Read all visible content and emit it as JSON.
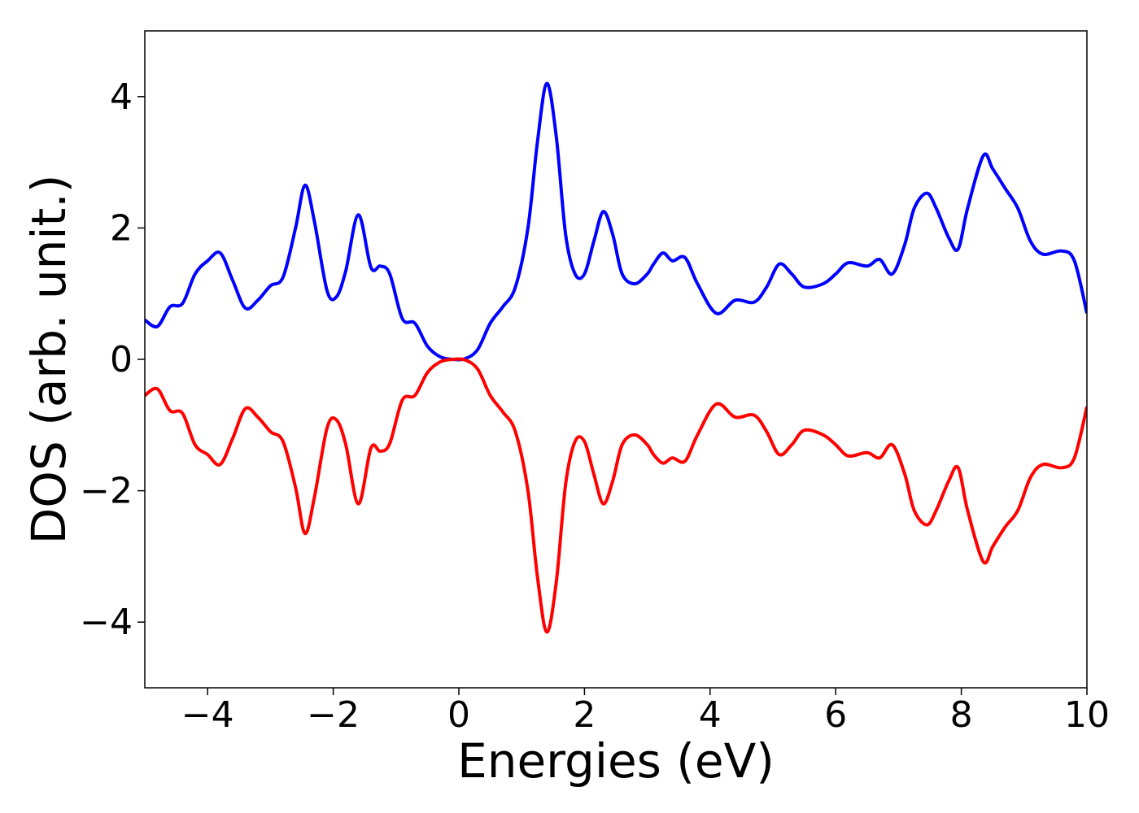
{
  "chart_data": {
    "type": "line",
    "title": "",
    "xlabel": "Energies (eV)",
    "ylabel": "DOS (arb. unit.)",
    "xlim": [
      -5,
      10
    ],
    "ylim": [
      -5,
      5
    ],
    "xticks": [
      -4,
      -2,
      0,
      2,
      4,
      6,
      8,
      10
    ],
    "xtick_labels": [
      "−4",
      "−2",
      "0",
      "2",
      "4",
      "6",
      "8",
      "10"
    ],
    "yticks": [
      -4,
      -2,
      0,
      2,
      4
    ],
    "ytick_labels": [
      "−4",
      "−2",
      "0",
      "2",
      "4"
    ],
    "grid": false,
    "legend": "none",
    "x": [
      -5.0,
      -4.8,
      -4.6,
      -4.4,
      -4.2,
      -4.0,
      -3.8,
      -3.6,
      -3.4,
      -3.2,
      -3.0,
      -2.8,
      -2.6,
      -2.45,
      -2.3,
      -2.1,
      -1.95,
      -1.8,
      -1.6,
      -1.4,
      -1.25,
      -1.1,
      -0.9,
      -0.7,
      -0.5,
      -0.3,
      -0.1,
      0.1,
      0.3,
      0.5,
      0.7,
      0.9,
      1.1,
      1.25,
      1.4,
      1.55,
      1.7,
      1.85,
      2.0,
      2.15,
      2.3,
      2.45,
      2.6,
      2.8,
      3.0,
      3.1,
      3.25,
      3.4,
      3.6,
      3.8,
      4.1,
      4.4,
      4.7,
      4.9,
      5.1,
      5.3,
      5.5,
      5.8,
      6.0,
      6.2,
      6.5,
      6.7,
      6.9,
      7.1,
      7.25,
      7.45,
      7.6,
      7.8,
      7.95,
      8.1,
      8.35,
      8.5,
      8.7,
      8.9,
      9.1,
      9.3,
      9.6,
      9.8,
      10.0
    ],
    "series": [
      {
        "color": "#0000ff",
        "values": [
          0.6,
          0.5,
          0.8,
          0.85,
          1.3,
          1.5,
          1.62,
          1.2,
          0.78,
          0.9,
          1.12,
          1.25,
          2.0,
          2.65,
          2.1,
          1.05,
          0.95,
          1.35,
          2.2,
          1.4,
          1.42,
          1.3,
          0.62,
          0.55,
          0.2,
          0.04,
          0.0,
          0.01,
          0.15,
          0.55,
          0.8,
          1.1,
          2.0,
          3.3,
          4.2,
          3.4,
          1.9,
          1.3,
          1.3,
          1.8,
          2.25,
          1.9,
          1.3,
          1.15,
          1.3,
          1.45,
          1.62,
          1.5,
          1.55,
          1.15,
          0.7,
          0.9,
          0.87,
          1.1,
          1.45,
          1.3,
          1.1,
          1.15,
          1.3,
          1.47,
          1.42,
          1.52,
          1.3,
          1.75,
          2.3,
          2.53,
          2.3,
          1.85,
          1.68,
          2.3,
          3.1,
          2.9,
          2.6,
          2.3,
          1.8,
          1.6,
          1.65,
          1.5,
          0.7
        ]
      },
      {
        "color": "#ff0000",
        "values": [
          -0.55,
          -0.45,
          -0.78,
          -0.82,
          -1.3,
          -1.45,
          -1.6,
          -1.2,
          -0.75,
          -0.88,
          -1.1,
          -1.25,
          -1.95,
          -2.65,
          -2.1,
          -1.05,
          -0.92,
          -1.3,
          -2.2,
          -1.35,
          -1.4,
          -1.28,
          -0.62,
          -0.55,
          -0.2,
          -0.04,
          0.0,
          -0.01,
          -0.15,
          -0.55,
          -0.8,
          -1.1,
          -2.0,
          -3.3,
          -4.15,
          -3.4,
          -1.9,
          -1.25,
          -1.25,
          -1.75,
          -2.2,
          -1.85,
          -1.3,
          -1.15,
          -1.3,
          -1.45,
          -1.58,
          -1.5,
          -1.55,
          -1.15,
          -0.68,
          -0.88,
          -0.85,
          -1.1,
          -1.45,
          -1.3,
          -1.08,
          -1.15,
          -1.3,
          -1.47,
          -1.42,
          -1.5,
          -1.3,
          -1.75,
          -2.3,
          -2.52,
          -2.3,
          -1.85,
          -1.65,
          -2.3,
          -3.08,
          -2.85,
          -2.55,
          -2.3,
          -1.8,
          -1.6,
          -1.65,
          -1.5,
          -0.72
        ]
      }
    ]
  }
}
